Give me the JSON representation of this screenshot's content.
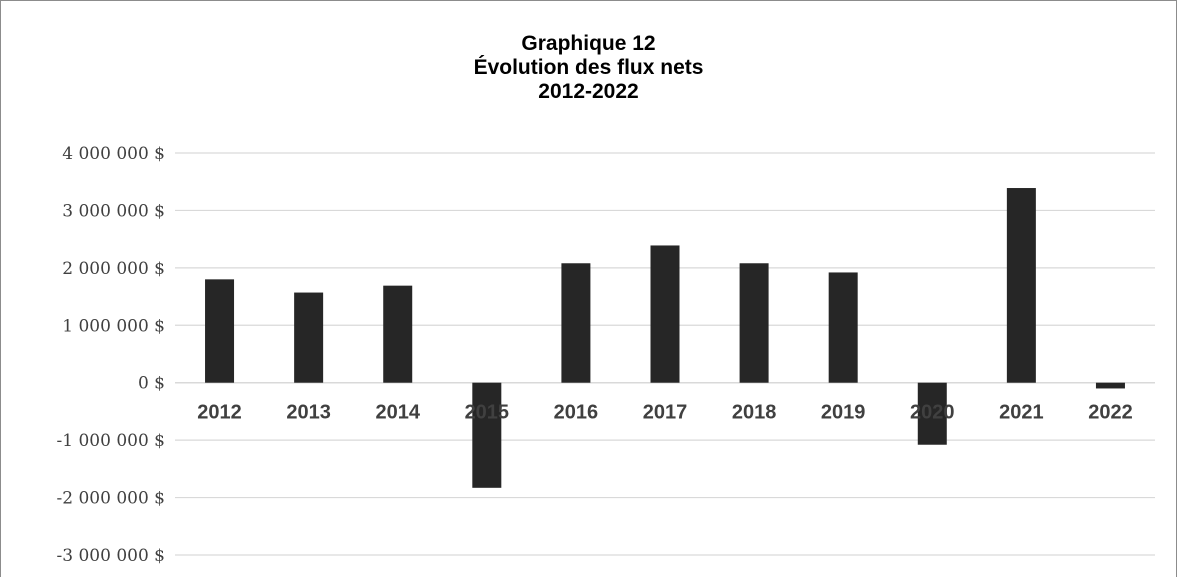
{
  "chart_data": {
    "type": "bar",
    "title": [
      "Graphique 12",
      "Évolution des flux nets",
      "2012-2022"
    ],
    "xlabel": "",
    "ylabel": "",
    "categories": [
      "2012",
      "2013",
      "2014",
      "2015",
      "2016",
      "2017",
      "2018",
      "2019",
      "2020",
      "2021",
      "2022"
    ],
    "values": [
      1800000,
      1570000,
      1690000,
      -1830000,
      2080000,
      2390000,
      2080000,
      1920000,
      -1080000,
      3390000,
      -100000
    ],
    "ylim": [
      -3000000,
      4000000
    ],
    "yticks": [
      4000000,
      3000000,
      2000000,
      1000000,
      0,
      -1000000,
      -2000000,
      -3000000
    ],
    "ytick_labels": [
      "4 000 000 $",
      "3 000 000 $",
      "2 000 000 $",
      "1 000 000 $",
      "0 $",
      "-1 000 000 $",
      "-2 000 000 $",
      "-3 000 000 $"
    ],
    "grid": true,
    "legend": "none",
    "bar_color": "#262626",
    "grid_color": "#d9d9d9"
  }
}
